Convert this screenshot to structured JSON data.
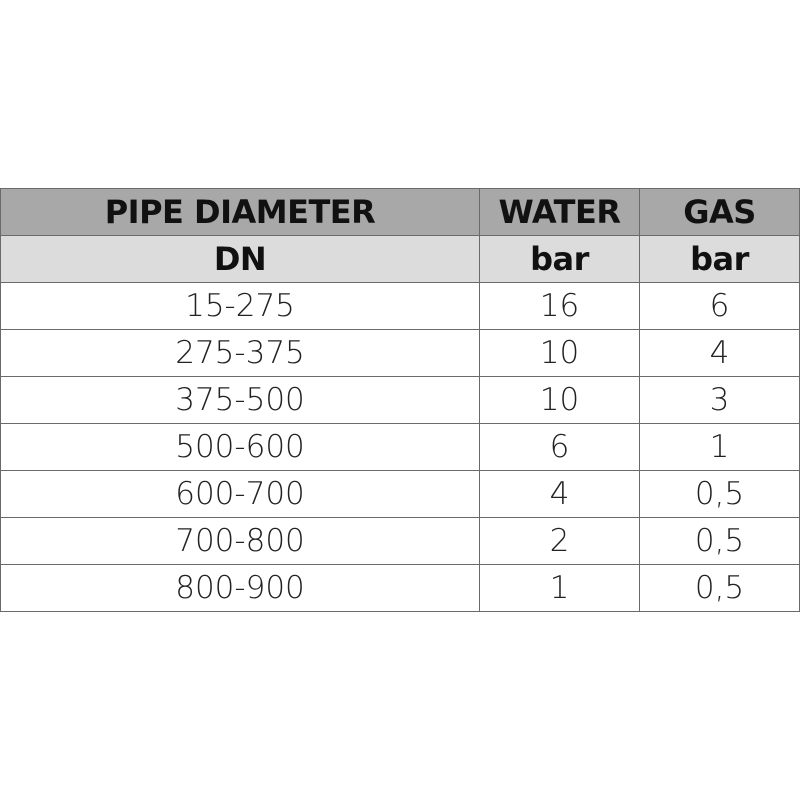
{
  "table": {
    "headers": [
      "PIPE DIAMETER",
      "WATER",
      "GAS"
    ],
    "units": [
      "DN",
      "bar",
      "bar"
    ],
    "rows": [
      [
        "15-275",
        "16",
        "6"
      ],
      [
        "275-375",
        "10",
        "4"
      ],
      [
        "375-500",
        "10",
        "3"
      ],
      [
        "500-600",
        "6",
        "1"
      ],
      [
        "600-700",
        "4",
        "0,5"
      ],
      [
        "700-800",
        "2",
        "0,5"
      ],
      [
        "800-900",
        "1",
        "0,5"
      ]
    ]
  }
}
